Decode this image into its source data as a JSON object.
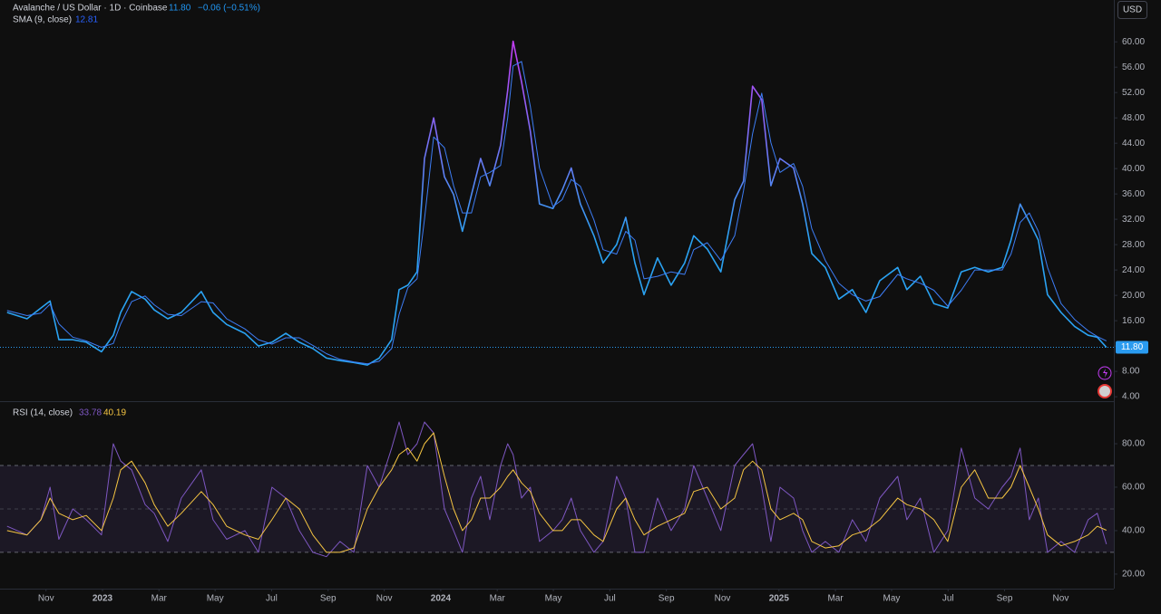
{
  "chart_data": [
    {
      "type": "line",
      "title": "Avalanche / US Dollar · 1D · Coinbase",
      "last_price_label": "11.80",
      "change_label": "−0.06 (−0.51%)",
      "currency": "USD",
      "x": [
        2022.718,
        2022.777,
        2022.818,
        2022.845,
        2022.871,
        2022.912,
        2022.952,
        2022.997,
        2023.032,
        2023.054,
        2023.086,
        2023.126,
        2023.153,
        2023.193,
        2023.233,
        2023.292,
        2023.327,
        2023.367,
        2023.421,
        2023.461,
        2023.501,
        2023.542,
        2023.582,
        2023.622,
        2023.662,
        2023.702,
        2023.743,
        2023.783,
        2023.818,
        2023.855,
        2023.877,
        2023.903,
        2023.93,
        2023.952,
        2023.979,
        2024.011,
        2024.038,
        2024.064,
        2024.091,
        2024.118,
        2024.145,
        2024.177,
        2024.198,
        2024.214,
        2024.239,
        2024.265,
        2024.292,
        2024.332,
        2024.359,
        2024.386,
        2024.413,
        2024.453,
        2024.48,
        2024.52,
        2024.547,
        2024.574,
        2024.601,
        2024.641,
        2024.681,
        2024.721,
        2024.748,
        2024.788,
        2024.828,
        2024.869,
        2024.895,
        2024.922,
        2024.949,
        2024.976,
        2025.003,
        2025.043,
        2025.07,
        2025.097,
        2025.137,
        2025.177,
        2025.217,
        2025.257,
        2025.298,
        2025.351,
        2025.378,
        2025.418,
        2025.458,
        2025.499,
        2025.539,
        2025.579,
        2025.619,
        2025.66,
        2025.686,
        2025.713,
        2025.74,
        2025.767,
        2025.794,
        2025.834,
        2025.874,
        2025.914,
        2025.941,
        2025.968
      ],
      "series": [
        {
          "gradient_colors": [
            "#2aa2f2",
            "#c43cf5"
          ],
          "values": [
            17.3,
            16.3,
            18,
            19.1,
            13,
            13,
            12.6,
            11.1,
            13.7,
            17.3,
            20.6,
            19.4,
            17.7,
            16.3,
            17.3,
            20.6,
            17.3,
            15.4,
            14,
            12,
            12.6,
            14,
            12.6,
            11.6,
            10.1,
            9.7,
            9.4,
            9,
            10.1,
            13,
            20.9,
            21.6,
            23.7,
            41.6,
            48,
            38.7,
            35.9,
            30.1,
            35.9,
            41.6,
            37.3,
            43.7,
            52.3,
            60.1,
            53.7,
            45.9,
            34.4,
            33.7,
            36.6,
            40.1,
            34.4,
            29.4,
            25.1,
            28,
            32.3,
            25.1,
            20.1,
            25.9,
            21.6,
            25.1,
            29.4,
            27.3,
            23.7,
            35.1,
            38,
            53,
            50.9,
            37.3,
            41.6,
            40.1,
            34.4,
            26.6,
            24.4,
            19.4,
            20.9,
            17.3,
            22.3,
            24.4,
            20.9,
            23,
            18.7,
            18,
            23.7,
            24.4,
            23.7,
            24.4,
            28.7,
            34.4,
            31.6,
            28.7,
            20.1,
            17.3,
            15.1,
            13.7,
            13.4,
            11.8
          ]
        },
        {
          "name": "SMA (9, close)",
          "color": "#3d7df5",
          "values": [
            17.6,
            16.8,
            17.2,
            18.6,
            15.5,
            13.4,
            12.8,
            11.8,
            12.4,
            15.5,
            19,
            19.9,
            18.5,
            17,
            16.8,
            19,
            18.8,
            16.3,
            14.7,
            13,
            12.3,
            13.3,
            13.3,
            12.1,
            10.8,
            9.9,
            9.5,
            9.2,
            9.6,
            11.6,
            17,
            21.2,
            22.6,
            32,
            45,
            43.3,
            37.3,
            33,
            33,
            38.7,
            39.4,
            40.5,
            48,
            56.2,
            56.9,
            49.8,
            40.1,
            34,
            35.1,
            38.3,
            37.2,
            31.9,
            27.2,
            26.5,
            30.1,
            28.7,
            22.6,
            23,
            23.7,
            23.3,
            27.2,
            28.3,
            25.5,
            29.4,
            36.5,
            45.5,
            51.9,
            44.1,
            39.4,
            40.8,
            37.2,
            30.5,
            25.5,
            21.9,
            20.1,
            19.1,
            19.8,
            23.3,
            22.6,
            21.9,
            20.8,
            18.3,
            20.8,
            24,
            24,
            24,
            26.5,
            31.5,
            33,
            30.1,
            24.4,
            18.7,
            16.2,
            14.4,
            13.5,
            12.81
          ]
        }
      ],
      "xlim": [
        2022.697,
        2025.99
      ],
      "ylim": [
        3.3,
        66.6
      ],
      "yticks": [
        {
          "value": 4,
          "label": "4.00"
        },
        {
          "value": 8,
          "label": "8.00"
        },
        {
          "value": 12,
          "label": "12.00"
        },
        {
          "value": 16,
          "label": "16.00"
        },
        {
          "value": 20,
          "label": "20.00"
        },
        {
          "value": 24,
          "label": "24.00"
        },
        {
          "value": 28,
          "label": "28.00"
        },
        {
          "value": 32,
          "label": "32.00"
        },
        {
          "value": 36,
          "label": "36.00"
        },
        {
          "value": 40,
          "label": "40.00"
        },
        {
          "value": 44,
          "label": "44.00"
        },
        {
          "value": 48,
          "label": "48.00"
        },
        {
          "value": 52,
          "label": "52.00"
        },
        {
          "value": 56,
          "label": "56.00"
        },
        {
          "value": 60,
          "label": "60.00"
        }
      ]
    },
    {
      "type": "line",
      "title": "RSI (14, close)",
      "x": [
        2022.718,
        2022.777,
        2022.818,
        2022.845,
        2022.871,
        2022.912,
        2022.952,
        2022.997,
        2023.032,
        2023.054,
        2023.086,
        2023.126,
        2023.153,
        2023.193,
        2023.233,
        2023.292,
        2023.327,
        2023.367,
        2023.421,
        2023.461,
        2023.501,
        2023.542,
        2023.582,
        2023.622,
        2023.662,
        2023.702,
        2023.743,
        2023.783,
        2023.818,
        2023.855,
        2023.877,
        2023.903,
        2023.93,
        2023.952,
        2023.979,
        2024.011,
        2024.038,
        2024.064,
        2024.091,
        2024.118,
        2024.145,
        2024.177,
        2024.198,
        2024.214,
        2024.239,
        2024.265,
        2024.292,
        2024.332,
        2024.359,
        2024.386,
        2024.413,
        2024.453,
        2024.48,
        2024.52,
        2024.547,
        2024.574,
        2024.601,
        2024.641,
        2024.681,
        2024.721,
        2024.748,
        2024.788,
        2024.828,
        2024.869,
        2024.895,
        2024.922,
        2024.949,
        2024.976,
        2025.003,
        2025.043,
        2025.07,
        2025.097,
        2025.137,
        2025.177,
        2025.217,
        2025.257,
        2025.298,
        2025.351,
        2025.378,
        2025.418,
        2025.458,
        2025.499,
        2025.539,
        2025.579,
        2025.619,
        2025.66,
        2025.686,
        2025.713,
        2025.74,
        2025.767,
        2025.794,
        2025.834,
        2025.874,
        2025.914,
        2025.941,
        2025.968
      ],
      "series": [
        {
          "color": "#7e57c2",
          "values": [
            42,
            38,
            45,
            60,
            36,
            50,
            45,
            38,
            80,
            72,
            68,
            52,
            48,
            35,
            55,
            68,
            45,
            36,
            40,
            30,
            60,
            55,
            40,
            30,
            28,
            35,
            30,
            70,
            60,
            78,
            90,
            75,
            80,
            90,
            85,
            50,
            40,
            30,
            55,
            65,
            45,
            70,
            80,
            75,
            55,
            60,
            35,
            40,
            45,
            55,
            40,
            30,
            35,
            65,
            55,
            30,
            30,
            55,
            40,
            50,
            70,
            55,
            40,
            70,
            75,
            80,
            60,
            35,
            60,
            55,
            40,
            30,
            35,
            30,
            45,
            35,
            55,
            65,
            45,
            55,
            30,
            40,
            78,
            55,
            50,
            60,
            65,
            78,
            45,
            55,
            30,
            35,
            30,
            45,
            48,
            33.78
          ]
        },
        {
          "color": "#f5c542",
          "values": [
            40,
            38,
            45,
            55,
            48,
            45,
            47,
            40,
            55,
            68,
            72,
            62,
            52,
            42,
            48,
            58,
            52,
            42,
            38,
            36,
            45,
            55,
            50,
            38,
            30,
            30,
            32,
            50,
            60,
            68,
            75,
            78,
            72,
            80,
            85,
            65,
            50,
            40,
            45,
            55,
            55,
            60,
            65,
            68,
            62,
            58,
            48,
            40,
            40,
            45,
            45,
            38,
            35,
            50,
            55,
            45,
            38,
            42,
            45,
            48,
            58,
            60,
            50,
            55,
            68,
            72,
            68,
            50,
            45,
            48,
            45,
            35,
            32,
            33,
            38,
            40,
            45,
            55,
            52,
            50,
            45,
            35,
            60,
            68,
            55,
            55,
            60,
            70,
            60,
            50,
            38,
            33,
            35,
            38,
            42,
            40.19
          ]
        }
      ],
      "band_lines": [
        30,
        50,
        70
      ],
      "xlim": [
        2022.697,
        2025.99
      ],
      "ylim": [
        13.3,
        98.75
      ],
      "yticks": [
        {
          "value": 20,
          "label": "20.00"
        },
        {
          "value": 40,
          "label": "40.00"
        },
        {
          "value": 60,
          "label": "60.00"
        },
        {
          "value": 80,
          "label": "80.00"
        }
      ],
      "xticks": [
        {
          "value": 2022.833,
          "label": "Nov"
        },
        2023,
        {
          "value": 2023.167,
          "label": "Mar"
        },
        {
          "value": 2023.333,
          "label": "May"
        },
        {
          "value": 2023.5,
          "label": "Jul"
        },
        {
          "value": 2023.667,
          "label": "Sep"
        },
        {
          "value": 2023.833,
          "label": "Nov"
        },
        2024,
        {
          "value": 2024.167,
          "label": "Mar"
        },
        {
          "value": 2024.333,
          "label": "May"
        },
        {
          "value": 2024.5,
          "label": "Jul"
        },
        {
          "value": 2024.667,
          "label": "Sep"
        },
        {
          "value": 2024.833,
          "label": "Nov"
        },
        2025,
        {
          "value": 2025.167,
          "label": "Mar"
        },
        {
          "value": 2025.333,
          "label": "May"
        },
        {
          "value": 2025.5,
          "label": "Jul"
        },
        {
          "value": 2025.667,
          "label": "Sep"
        },
        {
          "value": 2025.833,
          "label": "Nov"
        }
      ]
    }
  ]
}
